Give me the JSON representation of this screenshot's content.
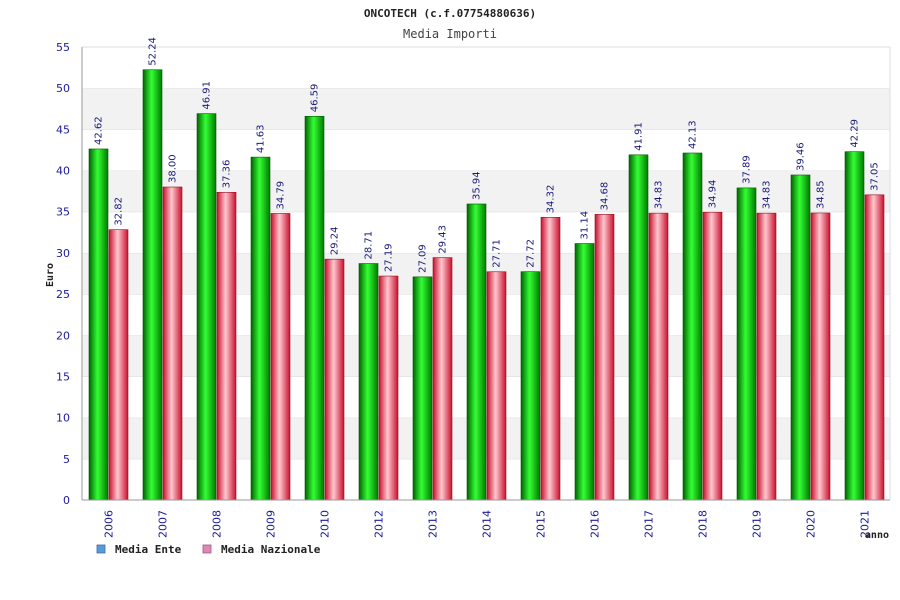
{
  "chart_data": {
    "type": "bar",
    "title": "ONCOTECH (c.f.07754880636)",
    "subtitle": "Media Importi",
    "xlabel": "anno",
    "ylabel": "Euro",
    "ylim": [
      0,
      55
    ],
    "yticks": [
      0,
      5,
      10,
      15,
      20,
      25,
      30,
      35,
      40,
      45,
      50,
      55
    ],
    "categories": [
      "2006",
      "2007",
      "2008",
      "2009",
      "2010",
      "2012",
      "2013",
      "2014",
      "2015",
      "2016",
      "2017",
      "2018",
      "2019",
      "2020",
      "2021"
    ],
    "series": [
      {
        "name": "Media Ente",
        "values": [
          42.62,
          52.24,
          46.91,
          41.63,
          46.59,
          28.71,
          27.09,
          35.94,
          27.72,
          31.14,
          41.91,
          42.13,
          37.89,
          39.46,
          42.29
        ],
        "labels": [
          "42.62",
          "52.24",
          "46.91",
          "41.63",
          "46.59",
          "28.71",
          "27.09",
          "35.94",
          "27.72",
          "31.14",
          "41.91",
          "42.13",
          "37.89",
          "39.46",
          "42.29"
        ]
      },
      {
        "name": "Media Nazionale",
        "values": [
          32.82,
          38.0,
          37.36,
          34.79,
          29.24,
          27.19,
          29.43,
          27.71,
          34.32,
          34.68,
          34.83,
          34.94,
          34.83,
          34.85,
          37.05
        ],
        "labels": [
          "32.82",
          "38.00",
          "37.36",
          "34.79",
          "29.24",
          "27.19",
          "29.43",
          "27.71",
          "34.32",
          "34.68",
          "34.83",
          "34.94",
          "34.83",
          "34.85",
          "37.05"
        ]
      }
    ],
    "legend": {
      "position": "bottom-left",
      "items": [
        {
          "label": "Media Ente",
          "color": "#5b9bd5"
        },
        {
          "label": "Media Nazionale",
          "color": "#d98cb3"
        }
      ]
    },
    "colors": {
      "ente_dark": "#007a00",
      "ente_light": "#33ff33",
      "naz_dark": "#cc1122",
      "naz_light": "#ffc0c8",
      "band": "#f2f2f2",
      "tick_text": "#1a1a9c"
    }
  }
}
